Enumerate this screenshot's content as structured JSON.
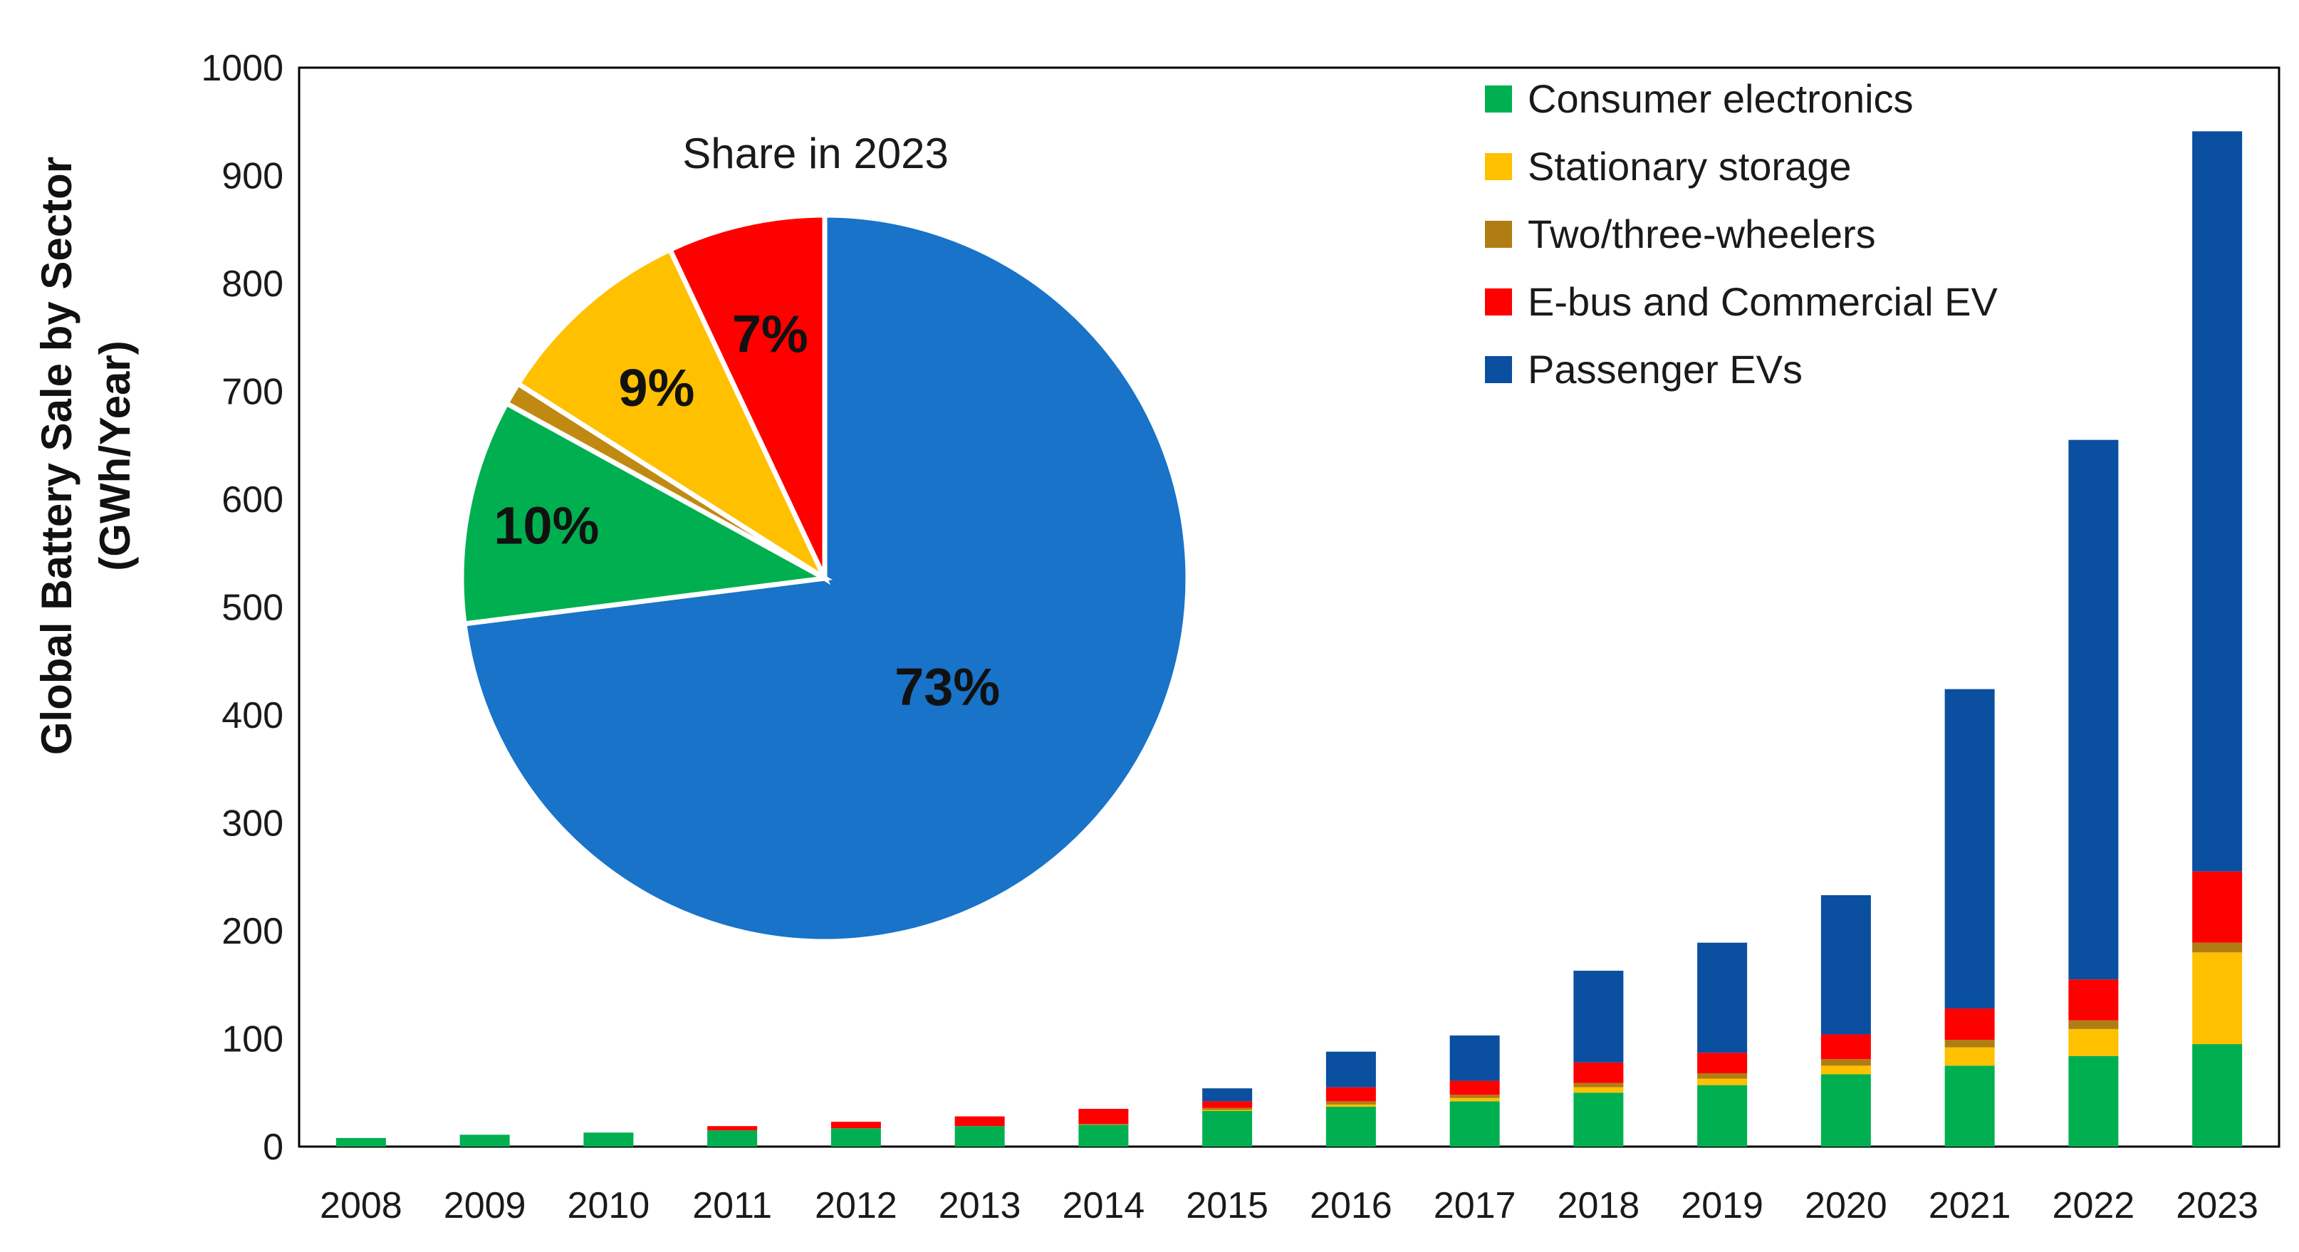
{
  "chart_data": [
    {
      "type": "bar",
      "stacked": true,
      "title": "",
      "xlabel": "",
      "ylabel": "Global Battery Sale by Sector (GWh/Year)",
      "ylabel_lines": [
        "Global Battery Sale by Sector",
        "(GWh/Year)"
      ],
      "ylim": [
        0,
        1000
      ],
      "yticks": [
        0,
        100,
        200,
        300,
        400,
        500,
        600,
        700,
        800,
        900,
        1000
      ],
      "categories": [
        "2008",
        "2009",
        "2010",
        "2011",
        "2012",
        "2013",
        "2014",
        "2015",
        "2016",
        "2017",
        "2018",
        "2019",
        "2020",
        "2021",
        "2022",
        "2023"
      ],
      "legend_position": "top-right",
      "series": [
        {
          "name": "Consumer electronics",
          "color": "#00b050",
          "values": [
            8,
            11,
            13,
            15,
            17,
            19,
            20,
            33,
            37,
            42,
            50,
            57,
            67,
            75,
            84,
            95
          ]
        },
        {
          "name": "Stationary storage",
          "color": "#ffc000",
          "values": [
            0,
            0,
            0,
            0,
            0,
            0,
            0,
            1,
            2,
            3,
            5,
            6,
            8,
            17,
            25,
            85
          ]
        },
        {
          "name": "Two/three-wheelers",
          "color": "#b07d12",
          "values": [
            0,
            0,
            0,
            0,
            0,
            0,
            1,
            2,
            3,
            3,
            4,
            5,
            6,
            7,
            8,
            9
          ]
        },
        {
          "name": "E-bus and Commercial EV",
          "color": "#ff0000",
          "values": [
            0,
            0,
            0,
            4,
            6,
            9,
            14,
            6,
            13,
            13,
            19,
            19,
            23,
            29,
            38,
            66
          ]
        },
        {
          "name": "Passenger EVs",
          "color": "#0a4fa0",
          "values": [
            0,
            0,
            0,
            0,
            0,
            0,
            0,
            12,
            33,
            42,
            85,
            102,
            129,
            296,
            500,
            686
          ]
        }
      ]
    },
    {
      "type": "pie",
      "title": "Share in 2023",
      "slices": [
        {
          "name": "Passenger EVs",
          "value": 73,
          "label": "73%",
          "color": "#1873c9"
        },
        {
          "name": "Consumer electronics",
          "value": 10,
          "label": "10%",
          "color": "#00b050"
        },
        {
          "name": "Two/three-wheelers",
          "value": 1,
          "label": "",
          "color": "#c08a12"
        },
        {
          "name": "Stationary storage",
          "value": 9,
          "label": "9%",
          "color": "#ffc000"
        },
        {
          "name": "E-bus and Commercial EV",
          "value": 7,
          "label": "7%",
          "color": "#ff0000"
        }
      ]
    }
  ]
}
